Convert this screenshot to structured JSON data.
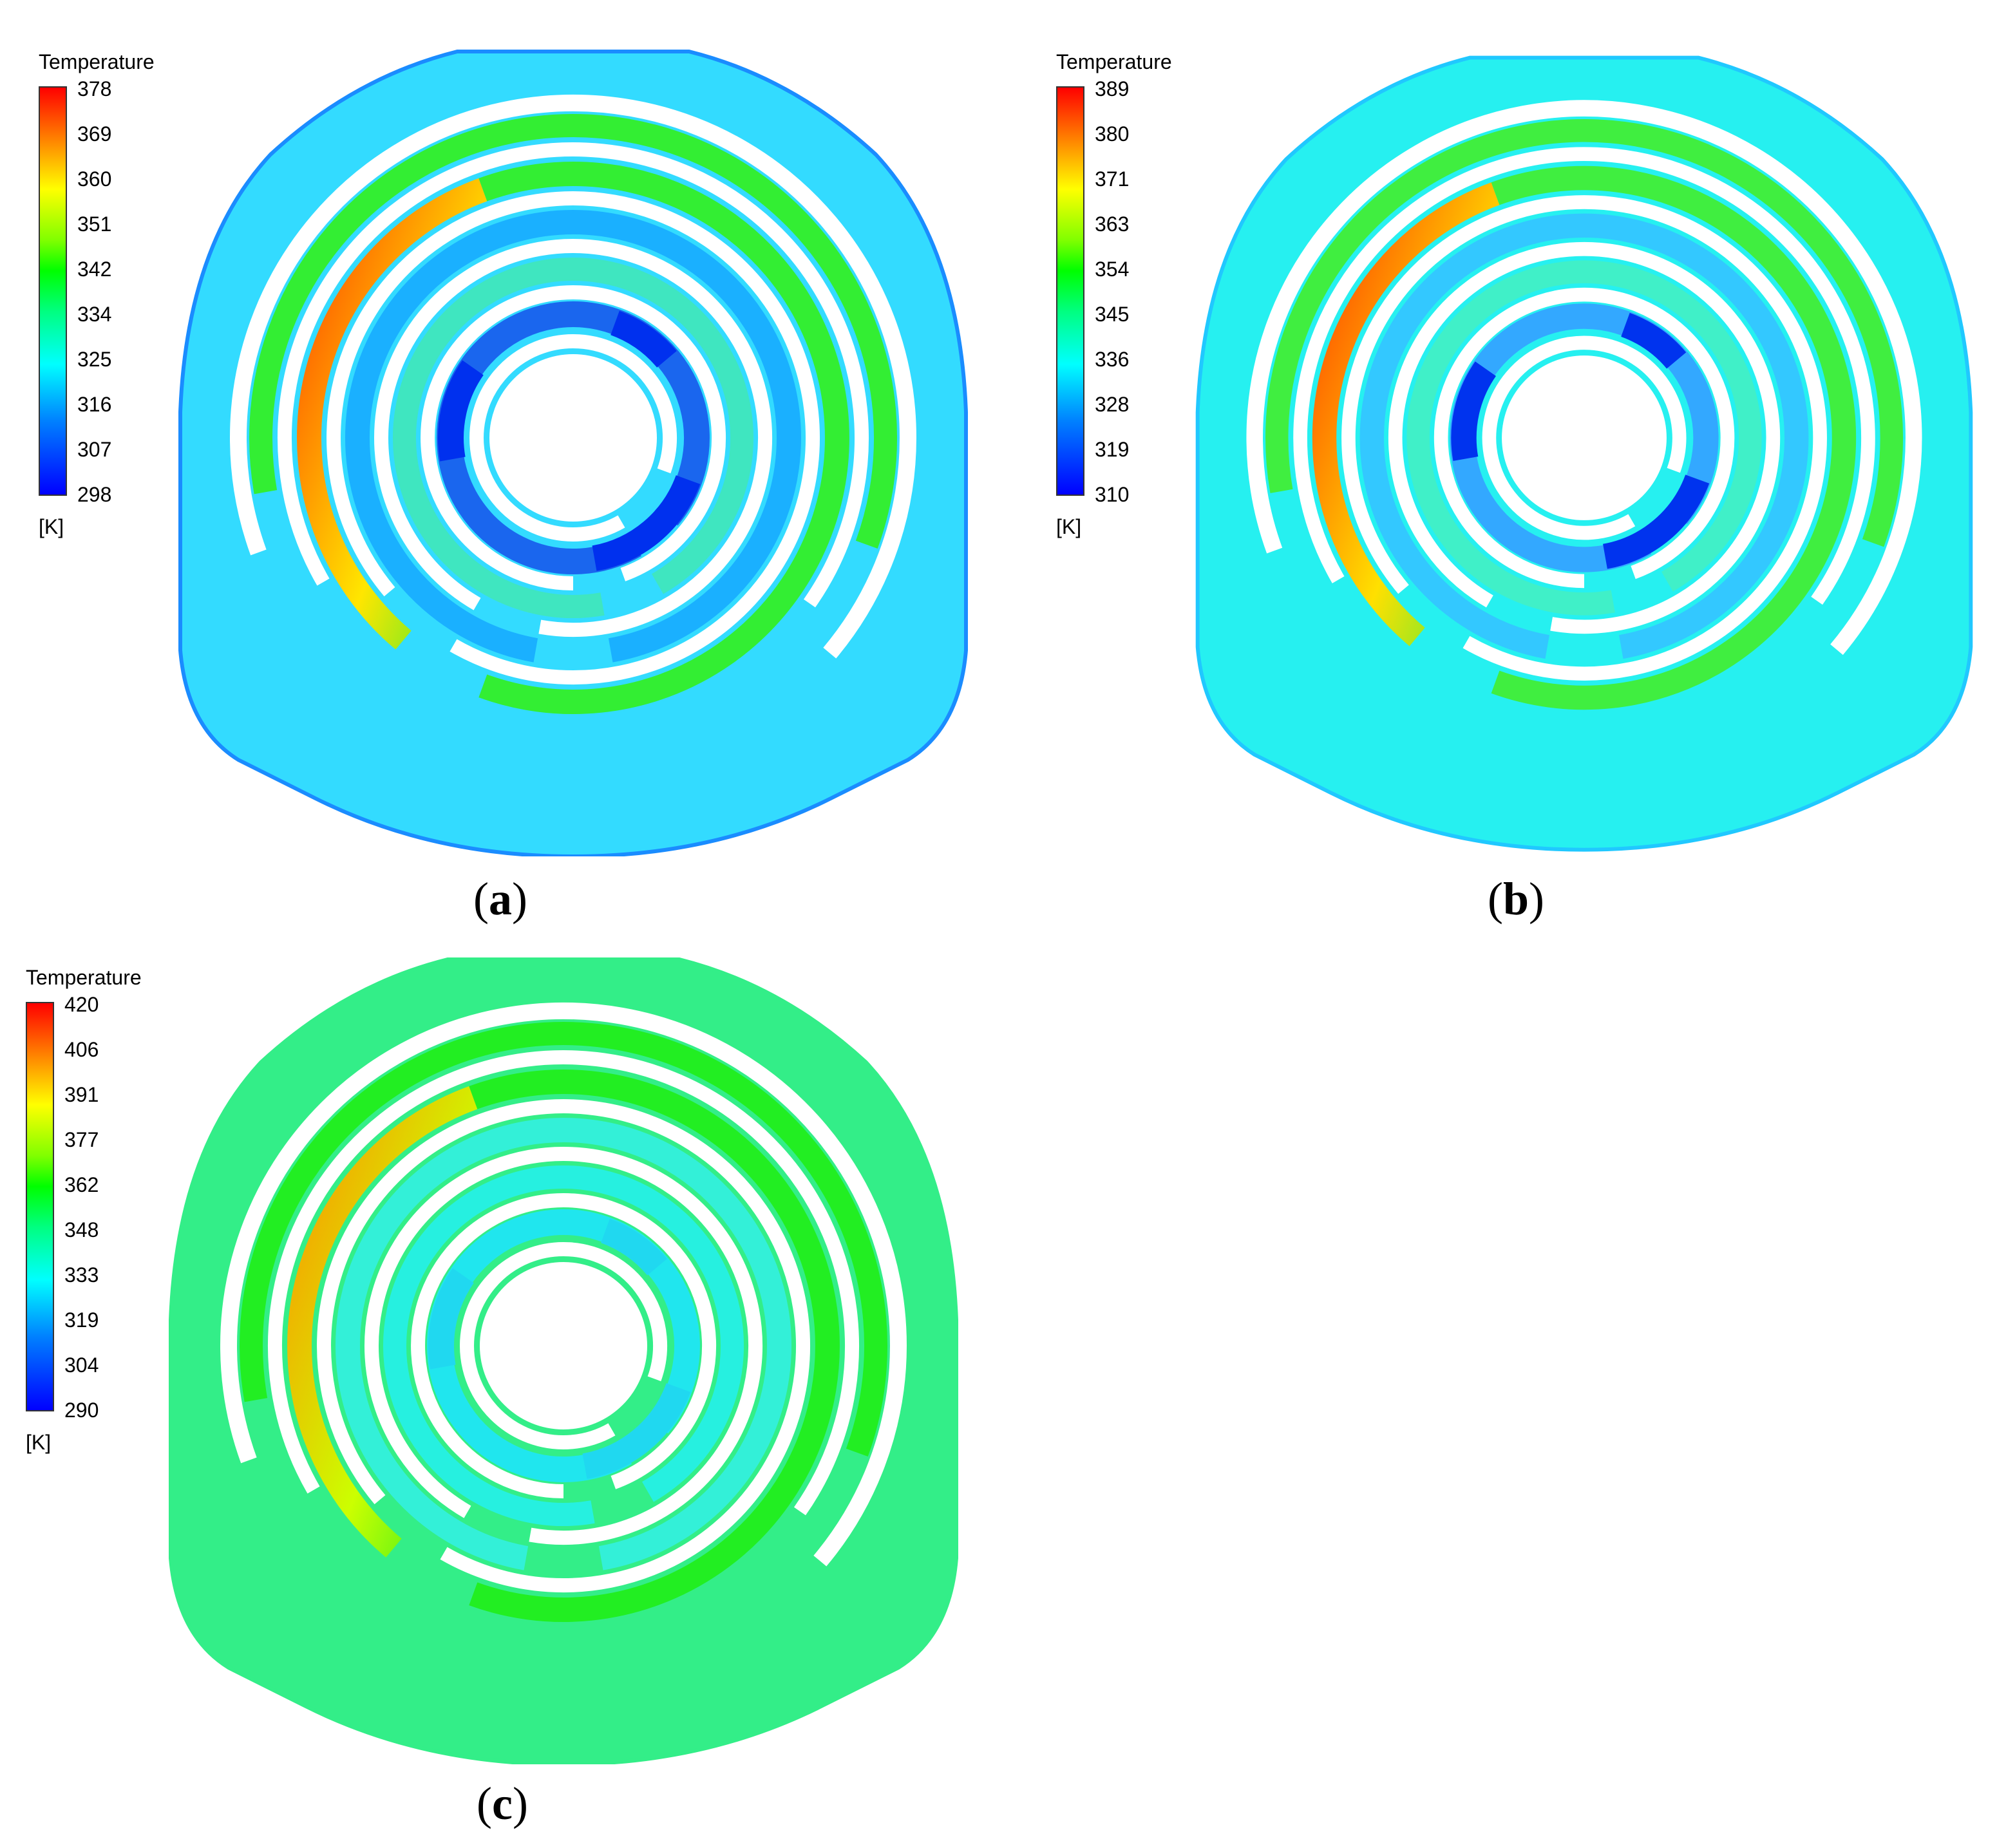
{
  "panels": [
    {
      "id": "a",
      "label": "a",
      "legend": {
        "title": "Temperature",
        "unit": "[K]",
        "ticks": [
          "378",
          "369",
          "360",
          "351",
          "342",
          "334",
          "325",
          "316",
          "307",
          "298"
        ]
      },
      "colors": {
        "body": "#33dbff",
        "edge": "#1a8cff",
        "ring1": "#1ab0ff",
        "ring2": "#3fe6c0",
        "hot": "#ff4000",
        "warm": "#ffe600",
        "green": "#33ee33",
        "inner": "#1a66ee",
        "cold": "#0030ee"
      }
    },
    {
      "id": "b",
      "label": "b",
      "legend": {
        "title": "Temperature",
        "unit": "[K]",
        "ticks": [
          "389",
          "380",
          "371",
          "363",
          "354",
          "345",
          "336",
          "328",
          "319",
          "310"
        ]
      },
      "colors": {
        "body": "#26f0f0",
        "edge": "#20c8ff",
        "ring1": "#33c8ff",
        "ring2": "#40f0c8",
        "hot": "#ff3a00",
        "warm": "#ffe000",
        "green": "#40ee40",
        "inner": "#33a8ff",
        "cold": "#0033ee"
      }
    },
    {
      "id": "c",
      "label": "c",
      "legend": {
        "title": "Temperature",
        "unit": "[K]",
        "ticks": [
          "420",
          "406",
          "391",
          "377",
          "362",
          "348",
          "333",
          "319",
          "304",
          "290"
        ]
      },
      "colors": {
        "body": "#33ee88",
        "edge": "#33ee88",
        "ring1": "#33f0d8",
        "ring2": "#26f0e0",
        "hot": "#ff9000",
        "warm": "#ccff00",
        "green": "#22ee22",
        "inner": "#20e6ee",
        "cold": "#20d8f0"
      }
    }
  ]
}
